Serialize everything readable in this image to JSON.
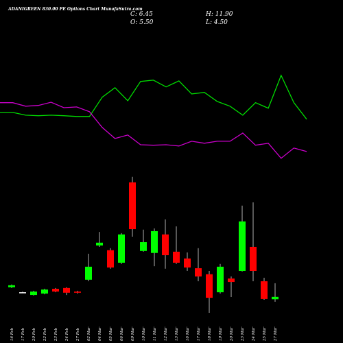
{
  "chart_data": {
    "type": "candlestick",
    "title": "ADANIGREEN 830.00 PE Options Chart MunafaSutra.com",
    "info": [
      "C: 6.45",
      "O: 5.50",
      "H: 11.90",
      "L: 4.50"
    ],
    "categories": [
      "16 Feb",
      "17 Feb",
      "20 Feb",
      "22 Feb",
      "23 Feb",
      "24 Feb",
      "27 Feb",
      "02 Mar",
      "04 Mar",
      "05 Mar",
      "06 Mar",
      "09 Mar",
      "10 Mar",
      "11 Mar",
      "12 Mar",
      "13 Mar",
      "16 Mar",
      "17 Mar",
      "18 Mar",
      "19 Mar",
      "20 Mar",
      "23 Mar",
      "24 Mar",
      "25 Mar",
      "27 Mar"
    ],
    "open": [
      10.3,
      8.3,
      7.2,
      7.8,
      9.7,
      10.0,
      8.6,
      13.3,
      27.0,
      25.1,
      20.1,
      52.2,
      24.8,
      24.0,
      31.4,
      24.5,
      21.8,
      17.9,
      15.5,
      8.3,
      13.8,
      16.8,
      26.4,
      12.7,
      5.5
    ],
    "close": [
      11.1,
      8.3,
      8.6,
      9.4,
      8.6,
      8.1,
      8.1,
      18.5,
      28.1,
      18.2,
      31.4,
      33.5,
      28.3,
      32.7,
      23.1,
      20.1,
      18.2,
      14.6,
      6.1,
      18.5,
      12.4,
      36.6,
      16.8,
      5.6,
      6.45
    ],
    "high": [
      11.4,
      8.6,
      8.9,
      9.7,
      10.0,
      10.3,
      8.9,
      23.7,
      32.4,
      25.9,
      31.9,
      54.4,
      33.3,
      33.8,
      37.4,
      34.6,
      24.2,
      25.9,
      16.8,
      19.6,
      14.6,
      42.9,
      44.2,
      14.1,
      11.9
    ],
    "low": [
      10.0,
      8.1,
      7.0,
      7.5,
      8.3,
      7.2,
      7.8,
      12.7,
      26.4,
      17.7,
      19.6,
      30.5,
      24.5,
      18.7,
      17.7,
      19.6,
      16.8,
      12.7,
      0.1,
      7.8,
      6.4,
      16.6,
      12.7,
      5.3,
      4.5
    ],
    "up_color": "#00ff00",
    "down_color": "#ff0000",
    "flat_color": "#ffffff",
    "wick_color": "#b0b0b0",
    "lines": [
      {
        "color": "#00dd00",
        "values": [
          80.1,
          80.1,
          79.0,
          78.8,
          79.0,
          78.8,
          78.5,
          78.5,
          86.2,
          90.0,
          84.8,
          92.5,
          93.0,
          90.3,
          92.7,
          87.5,
          88.1,
          84.5,
          82.6,
          79.0,
          84.0,
          81.8,
          94.9,
          84.0,
          77.4
        ]
      },
      {
        "color": "#cc00cc",
        "values": [
          84.0,
          84.0,
          82.6,
          82.9,
          84.2,
          82.0,
          82.3,
          80.4,
          74.1,
          69.7,
          71.1,
          67.2,
          67.0,
          67.2,
          66.7,
          68.6,
          67.8,
          68.6,
          68.6,
          71.9,
          67.0,
          67.8,
          61.8,
          65.9,
          64.5
        ]
      }
    ],
    "ylim": [
      -1,
      125
    ]
  }
}
